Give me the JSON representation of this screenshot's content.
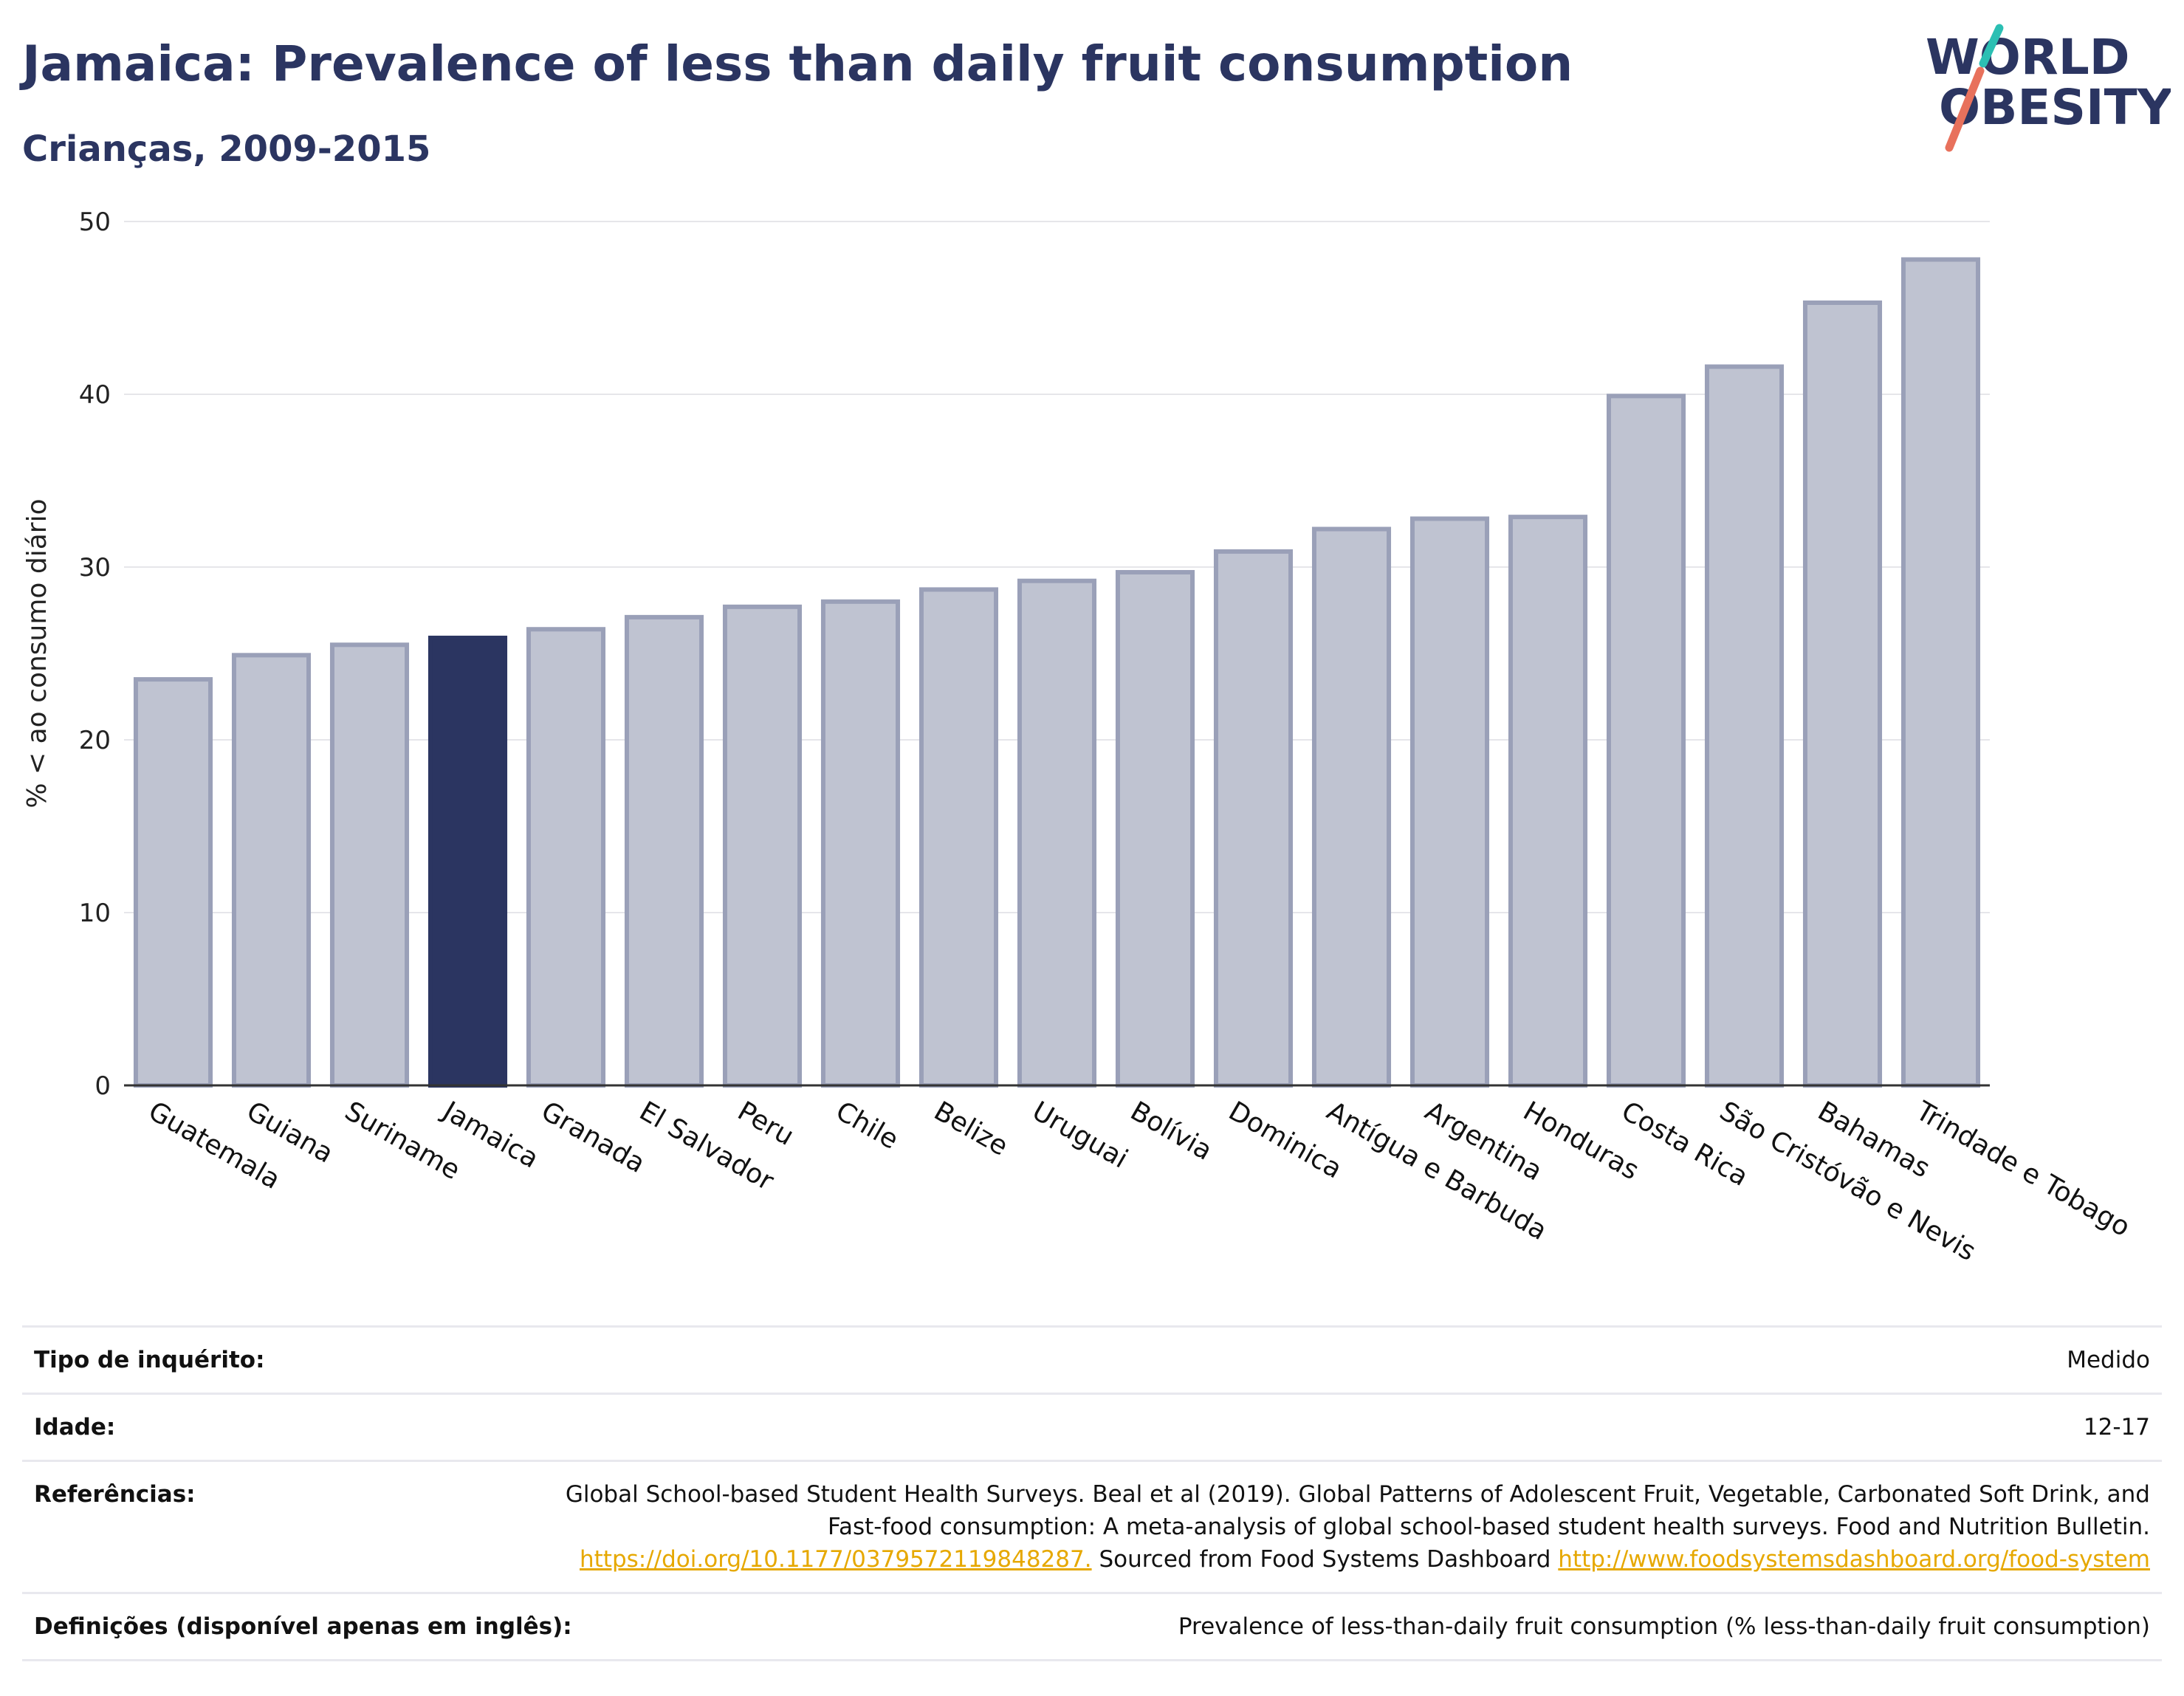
{
  "header": {
    "title": "Jamaica: Prevalence of less than daily fruit consumption",
    "subtitle": "Crianças, 2009-2015"
  },
  "logo": {
    "line1": "WORLD",
    "line2": "OBESITY",
    "accent_colors": [
      "#2bbfb3",
      "#e8715c"
    ]
  },
  "colors": {
    "highlight": "#2b3561",
    "bar_fill": "#bfc3d1",
    "bar_stroke": "#9aa0b8",
    "link": "#e6a800"
  },
  "chart_data": {
    "type": "bar",
    "title": "Jamaica: Prevalence of less than daily fruit consumption",
    "subtitle": "Crianças, 2009-2015",
    "xlabel": "",
    "ylabel": "% < ao consumo diário",
    "ylim": [
      0,
      50
    ],
    "yticks": [
      0,
      10,
      20,
      30,
      40,
      50
    ],
    "grid": true,
    "highlight": "Jamaica",
    "categories": [
      "Guatemala",
      "Guiana",
      "Suriname",
      "Jamaica",
      "Granada",
      "El Salvador",
      "Peru",
      "Chile",
      "Belize",
      "Uruguai",
      "Bolívia",
      "Dominica",
      "Antígua e Barbuda",
      "Argentina",
      "Honduras",
      "Costa Rica",
      "São Cristóvão e Nevis",
      "Bahamas",
      "Trindade e Tobago"
    ],
    "values": [
      23.5,
      24.9,
      25.5,
      25.9,
      26.4,
      27.1,
      27.7,
      28.0,
      28.7,
      29.2,
      29.7,
      30.9,
      32.2,
      32.8,
      32.9,
      39.9,
      41.6,
      45.3,
      47.8
    ]
  },
  "meta": [
    {
      "label": "Tipo de inquérito:",
      "value": "Medido"
    },
    {
      "label": "Idade:",
      "value": "12-17"
    },
    {
      "label": "Referências:",
      "value_text": "Global School-based Student Health Surveys. Beal et al (2019). Global Patterns of Adolescent Fruit, Vegetable, Carbonated Soft Drink, and Fast-food consumption: A meta-analysis of global school-based student health surveys. Food and Nutrition Bulletin.",
      "link1": "https://doi.org/10.1177/0379572119848287.",
      "mid_text": "Sourced from Food Systems Dashboard",
      "link2": "http://www.foodsystemsdashboard.org/food-system"
    },
    {
      "label": "Definições (disponível apenas em inglês):",
      "value": "Prevalence of less-than-daily fruit consumption (% less-than-daily fruit consumption)"
    }
  ]
}
